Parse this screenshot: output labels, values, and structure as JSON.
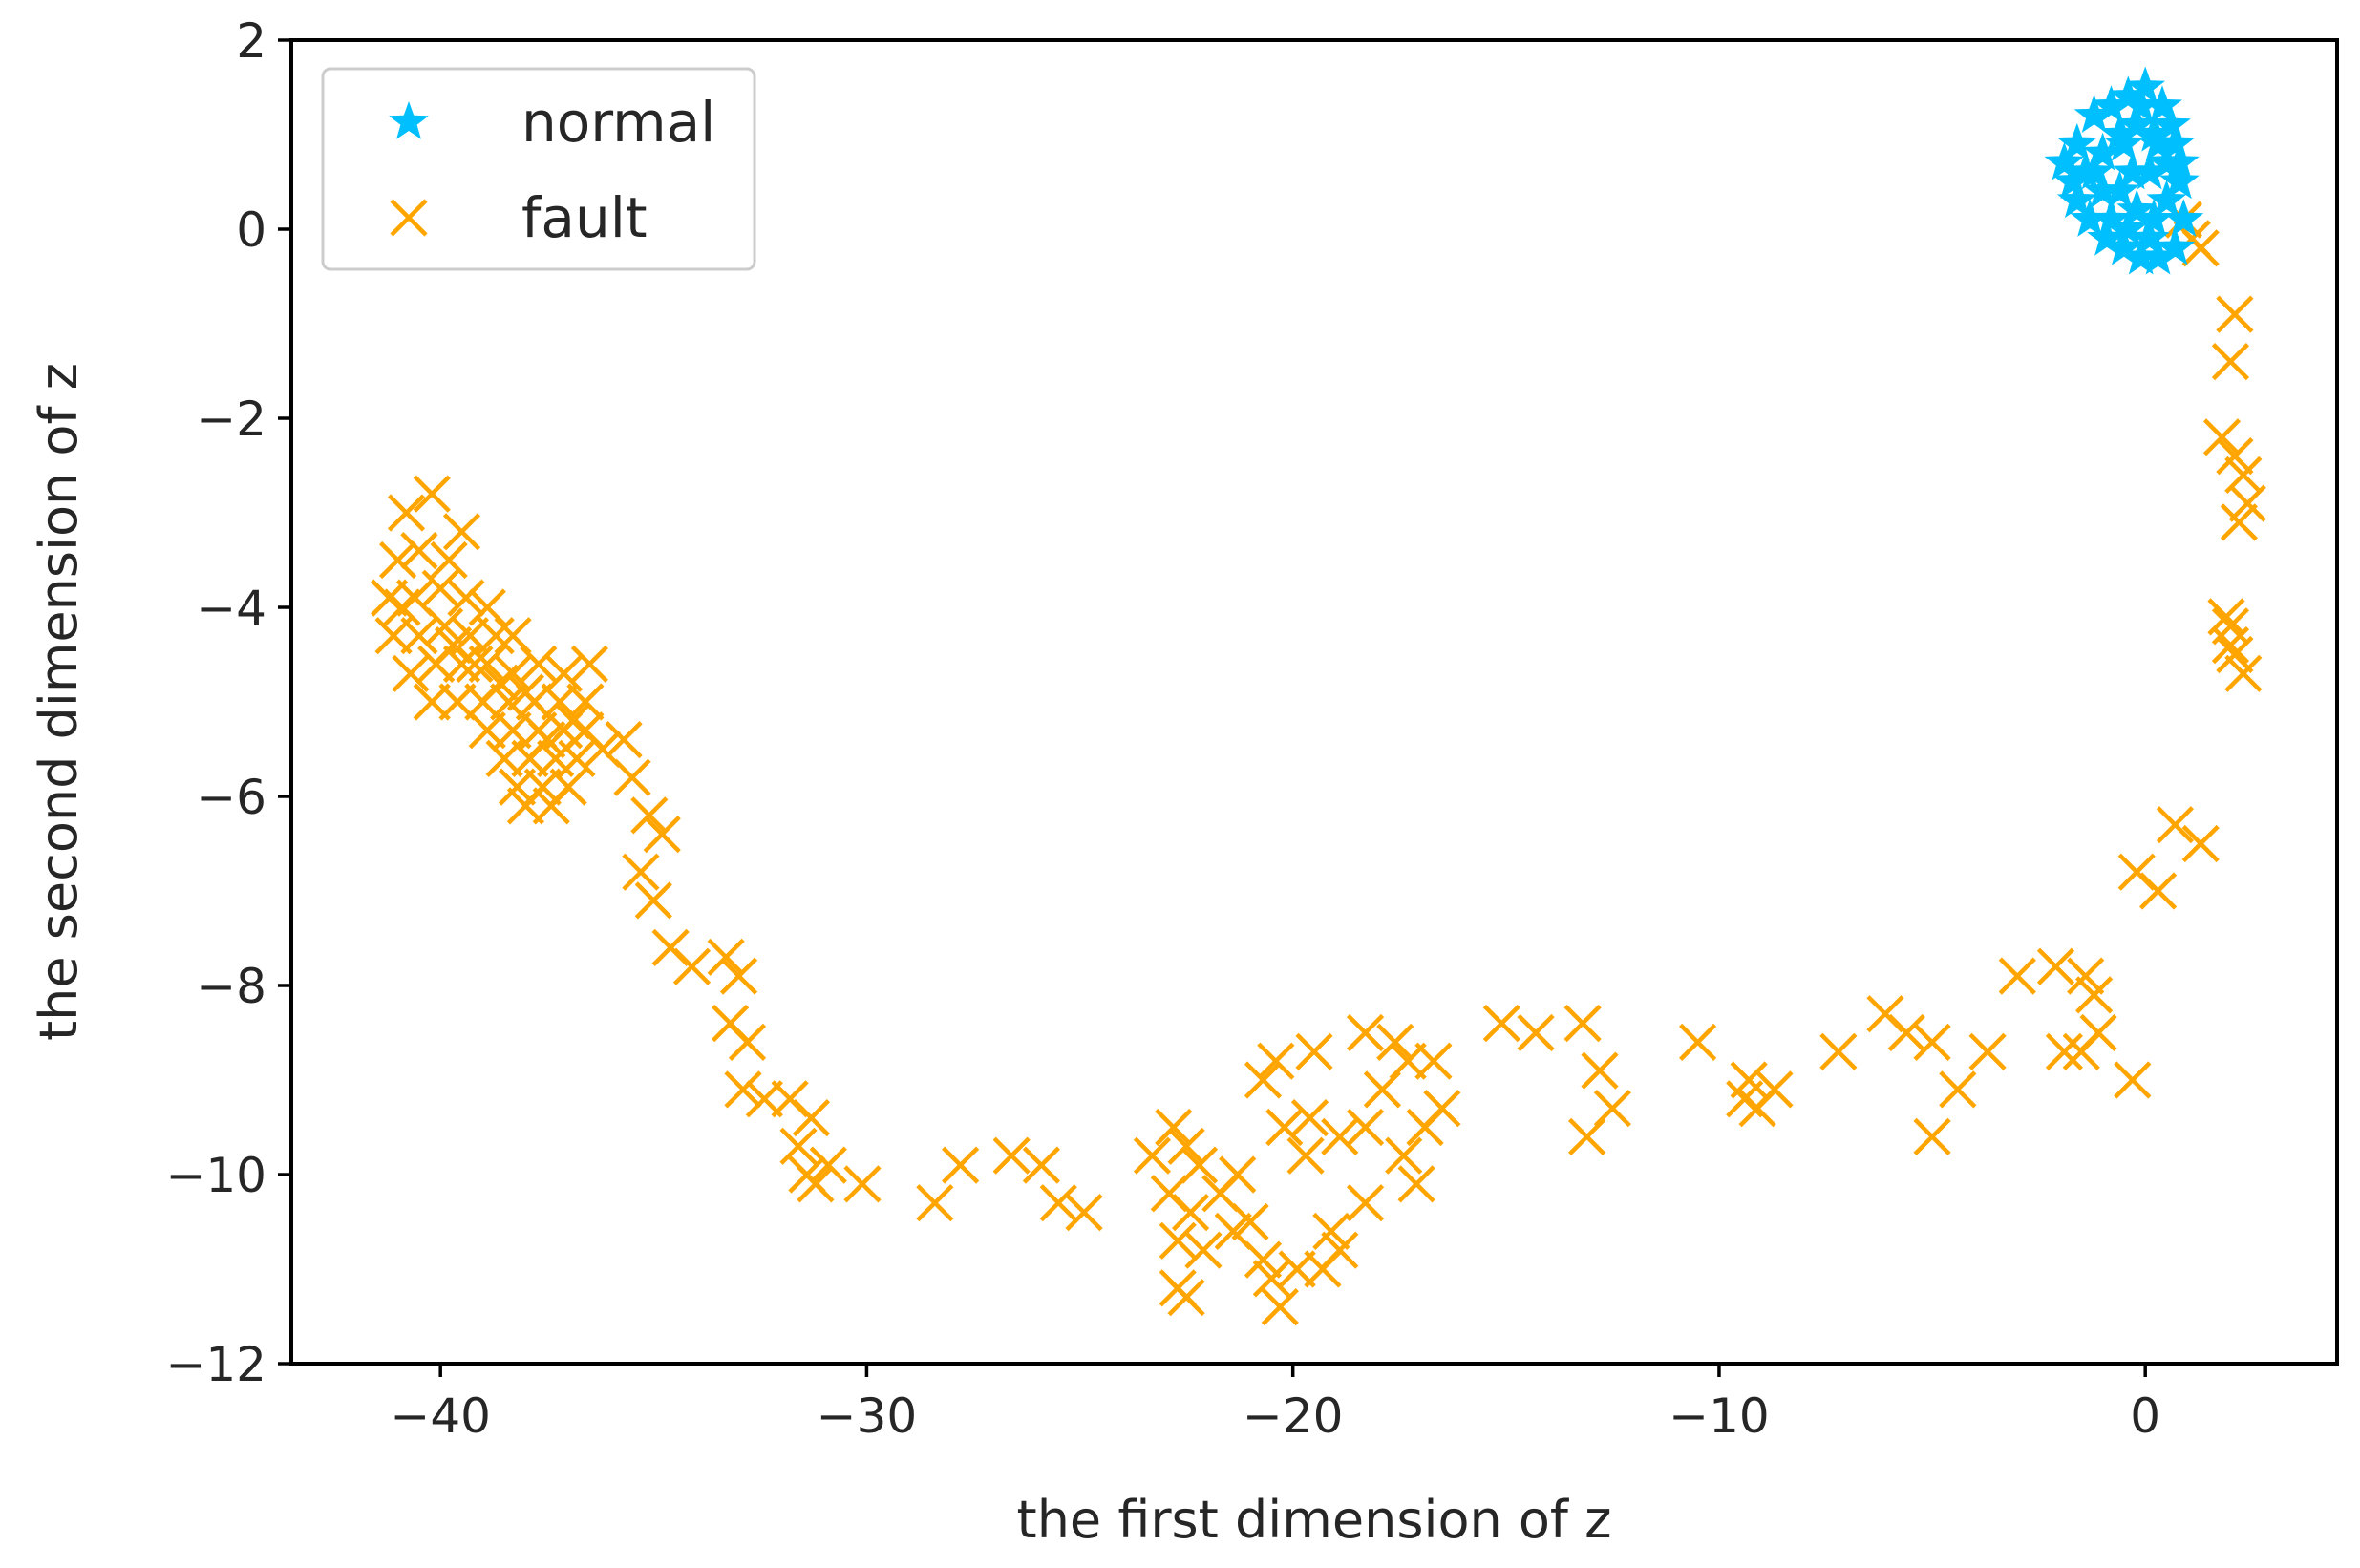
{
  "chart_data": {
    "type": "scatter",
    "title": "",
    "xlabel": "the first dimension of z",
    "ylabel": "the second dimension of z",
    "xlim": [
      -43.5,
      4.5
    ],
    "ylim": [
      -12,
      2
    ],
    "xticks": [
      {
        "value": -40,
        "label": "−40"
      },
      {
        "value": -30,
        "label": "−30"
      },
      {
        "value": -20,
        "label": "−20"
      },
      {
        "value": -10,
        "label": "−10"
      },
      {
        "value": 0,
        "label": "0"
      }
    ],
    "yticks": [
      {
        "value": 2,
        "label": "2"
      },
      {
        "value": 0,
        "label": "0"
      },
      {
        "value": -2,
        "label": "−2"
      },
      {
        "value": -4,
        "label": "−4"
      },
      {
        "value": -6,
        "label": "−6"
      },
      {
        "value": -8,
        "label": "−8"
      },
      {
        "value": -10,
        "label": "−10"
      },
      {
        "value": -12,
        "label": "−12"
      }
    ],
    "grid": false,
    "legend_position": "top-left",
    "series": [
      {
        "name": "normal",
        "marker": "star",
        "color": "#00BFFF",
        "points": [
          [
            -1.9,
            0.7
          ],
          [
            -1.6,
            0.9
          ],
          [
            -1.2,
            1.2
          ],
          [
            -0.8,
            1.3
          ],
          [
            -0.4,
            1.4
          ],
          [
            0.0,
            1.5
          ],
          [
            0.4,
            1.3
          ],
          [
            0.7,
            0.9
          ],
          [
            0.8,
            0.5
          ],
          [
            0.9,
            0.1
          ],
          [
            0.7,
            -0.2
          ],
          [
            0.3,
            -0.3
          ],
          [
            -0.1,
            -0.3
          ],
          [
            -0.5,
            -0.2
          ],
          [
            -0.9,
            -0.1
          ],
          [
            -1.3,
            0.1
          ],
          [
            -1.6,
            0.3
          ],
          [
            -1.4,
            0.6
          ],
          [
            -1.0,
            0.8
          ],
          [
            -0.6,
            1.0
          ],
          [
            -0.2,
            1.1
          ],
          [
            0.2,
            1.0
          ],
          [
            0.5,
            0.7
          ],
          [
            0.5,
            0.3
          ],
          [
            0.2,
            0.1
          ],
          [
            -0.2,
            0.2
          ],
          [
            -0.6,
            0.4
          ],
          [
            -1.0,
            0.4
          ],
          [
            -0.8,
            0.1
          ],
          [
            -0.3,
            0.6
          ],
          [
            0.1,
            0.6
          ],
          [
            0.3,
            0.9
          ],
          [
            -0.5,
            0.9
          ],
          [
            -1.2,
            0.6
          ],
          [
            -0.1,
            1.3
          ],
          [
            0.6,
            1.1
          ],
          [
            0.8,
            0.7
          ],
          [
            -1.7,
            0.5
          ],
          [
            -0.4,
            0.0
          ],
          [
            0.1,
            -0.1
          ]
        ]
      },
      {
        "name": "fault",
        "marker": "x",
        "color": "#FFA500",
        "points": [
          [
            -40.8,
            -3.0
          ],
          [
            -40.2,
            -2.8
          ],
          [
            -41.0,
            -3.5
          ],
          [
            -40.5,
            -3.4
          ],
          [
            -39.8,
            -3.5
          ],
          [
            -39.5,
            -3.2
          ],
          [
            -41.2,
            -3.9
          ],
          [
            -40.6,
            -3.9
          ],
          [
            -40.0,
            -3.8
          ],
          [
            -39.4,
            -3.9
          ],
          [
            -38.9,
            -4.0
          ],
          [
            -41.1,
            -4.3
          ],
          [
            -40.5,
            -4.3
          ],
          [
            -39.9,
            -4.2
          ],
          [
            -39.3,
            -4.3
          ],
          [
            -38.7,
            -4.3
          ],
          [
            -38.3,
            -4.3
          ],
          [
            -40.7,
            -4.7
          ],
          [
            -40.1,
            -4.6
          ],
          [
            -39.5,
            -4.6
          ],
          [
            -38.9,
            -4.6
          ],
          [
            -38.3,
            -4.7
          ],
          [
            -37.7,
            -4.6
          ],
          [
            -37.1,
            -4.7
          ],
          [
            -36.5,
            -4.6
          ],
          [
            -40.2,
            -5.0
          ],
          [
            -39.6,
            -5.0
          ],
          [
            -39.0,
            -5.0
          ],
          [
            -38.4,
            -5.0
          ],
          [
            -37.8,
            -5.0
          ],
          [
            -37.2,
            -5.0
          ],
          [
            -36.6,
            -5.0
          ],
          [
            -38.9,
            -5.3
          ],
          [
            -38.3,
            -5.3
          ],
          [
            -37.7,
            -5.3
          ],
          [
            -37.1,
            -5.3
          ],
          [
            -36.6,
            -5.3
          ],
          [
            -38.5,
            -5.6
          ],
          [
            -37.9,
            -5.6
          ],
          [
            -37.3,
            -5.6
          ],
          [
            -36.8,
            -5.6
          ],
          [
            -38.2,
            -5.9
          ],
          [
            -37.6,
            -5.9
          ],
          [
            -37.0,
            -5.9
          ],
          [
            -38.0,
            -6.1
          ],
          [
            -37.4,
            -6.1
          ],
          [
            -40.9,
            -4.0
          ],
          [
            -39.2,
            -4.6
          ],
          [
            -38.0,
            -4.9
          ],
          [
            -36.9,
            -5.2
          ],
          [
            -39.7,
            -4.4
          ],
          [
            -38.6,
            -4.8
          ],
          [
            -37.5,
            -5.4
          ],
          [
            -36.2,
            -5.5
          ],
          [
            -35.7,
            -5.4
          ],
          [
            -35.5,
            -5.8
          ],
          [
            -35.1,
            -6.2
          ],
          [
            -34.8,
            -6.4
          ],
          [
            -35.3,
            -6.8
          ],
          [
            -35.0,
            -7.1
          ],
          [
            -34.6,
            -7.6
          ],
          [
            -34.1,
            -7.8
          ],
          [
            -33.3,
            -7.7
          ],
          [
            -33.0,
            -7.9
          ],
          [
            -33.2,
            -8.4
          ],
          [
            -32.8,
            -8.6
          ],
          [
            -32.9,
            -9.1
          ],
          [
            -32.4,
            -9.2
          ],
          [
            -31.8,
            -9.2
          ],
          [
            -31.3,
            -9.4
          ],
          [
            -31.6,
            -9.7
          ],
          [
            -31.4,
            -10.0
          ],
          [
            -30.9,
            -9.9
          ],
          [
            -31.2,
            -10.1
          ],
          [
            -30.1,
            -10.1
          ],
          [
            -28.4,
            -10.3
          ],
          [
            -27.8,
            -9.9
          ],
          [
            -26.6,
            -9.8
          ],
          [
            -25.9,
            -9.9
          ],
          [
            -25.5,
            -10.3
          ],
          [
            -24.9,
            -10.4
          ],
          [
            -23.3,
            -9.8
          ],
          [
            -22.8,
            -9.5
          ],
          [
            -22.5,
            -9.7
          ],
          [
            -22.2,
            -9.9
          ],
          [
            -22.9,
            -10.2
          ],
          [
            -22.4,
            -10.4
          ],
          [
            -22.7,
            -10.7
          ],
          [
            -22.1,
            -10.8
          ],
          [
            -21.7,
            -10.2
          ],
          [
            -21.3,
            -10.0
          ],
          [
            -21.0,
            -10.5
          ],
          [
            -20.7,
            -10.9
          ],
          [
            -21.4,
            -10.6
          ],
          [
            -22.7,
            -11.2
          ],
          [
            -22.5,
            -11.3
          ],
          [
            -20.3,
            -11.4
          ],
          [
            -20.5,
            -11.1
          ],
          [
            -19.9,
            -11.0
          ],
          [
            -19.3,
            -11.0
          ],
          [
            -18.9,
            -10.8
          ],
          [
            -19.1,
            -10.6
          ],
          [
            -20.7,
            -9.0
          ],
          [
            -20.4,
            -8.8
          ],
          [
            -19.5,
            -8.7
          ],
          [
            -18.3,
            -8.5
          ],
          [
            -17.6,
            -8.6
          ],
          [
            -17.3,
            -8.8
          ],
          [
            -17.9,
            -9.1
          ],
          [
            -18.3,
            -9.5
          ],
          [
            -18.9,
            -9.6
          ],
          [
            -19.6,
            -9.4
          ],
          [
            -20.2,
            -9.5
          ],
          [
            -19.7,
            -9.8
          ],
          [
            -16.7,
            -8.8
          ],
          [
            -16.9,
            -9.5
          ],
          [
            -17.4,
            -9.8
          ],
          [
            -17.1,
            -10.1
          ],
          [
            -16.5,
            -9.3
          ],
          [
            -18.3,
            -10.3
          ],
          [
            -15.1,
            -8.4
          ],
          [
            -14.3,
            -8.5
          ],
          [
            -13.2,
            -8.4
          ],
          [
            -12.8,
            -8.9
          ],
          [
            -12.5,
            -9.3
          ],
          [
            -13.1,
            -9.6
          ],
          [
            -10.5,
            -8.6
          ],
          [
            -9.3,
            -9.0
          ],
          [
            -8.7,
            -9.1
          ],
          [
            -9.1,
            -9.3
          ],
          [
            -9.4,
            -9.2
          ],
          [
            -7.2,
            -8.7
          ],
          [
            -6.1,
            -8.3
          ],
          [
            -5.6,
            -8.5
          ],
          [
            -5.0,
            -8.6
          ],
          [
            -4.4,
            -9.1
          ],
          [
            -5.0,
            -9.6
          ],
          [
            -3.7,
            -8.7
          ],
          [
            -3.0,
            -7.9
          ],
          [
            -2.1,
            -7.8
          ],
          [
            -1.4,
            -7.9
          ],
          [
            -1.2,
            -8.1
          ],
          [
            -1.9,
            -8.7
          ],
          [
            -1.5,
            -8.7
          ],
          [
            -1.1,
            -8.5
          ],
          [
            -0.3,
            -9.0
          ],
          [
            -0.2,
            -6.8
          ],
          [
            0.3,
            -7.0
          ],
          [
            0.7,
            -6.3
          ],
          [
            1.3,
            -6.5
          ],
          [
            0.9,
            0.1
          ],
          [
            1.1,
            -0.1
          ],
          [
            1.3,
            -0.2
          ],
          [
            2.1,
            -0.9
          ],
          [
            2.0,
            -1.4
          ],
          [
            1.8,
            -2.2
          ],
          [
            2.1,
            -2.4
          ],
          [
            2.3,
            -2.6
          ],
          [
            2.4,
            -2.9
          ],
          [
            2.2,
            -3.1
          ],
          [
            2.0,
            -4.2
          ],
          [
            2.1,
            -4.5
          ],
          [
            2.3,
            -4.7
          ],
          [
            2.0,
            -4.4
          ],
          [
            1.9,
            -4.1
          ]
        ]
      }
    ]
  }
}
